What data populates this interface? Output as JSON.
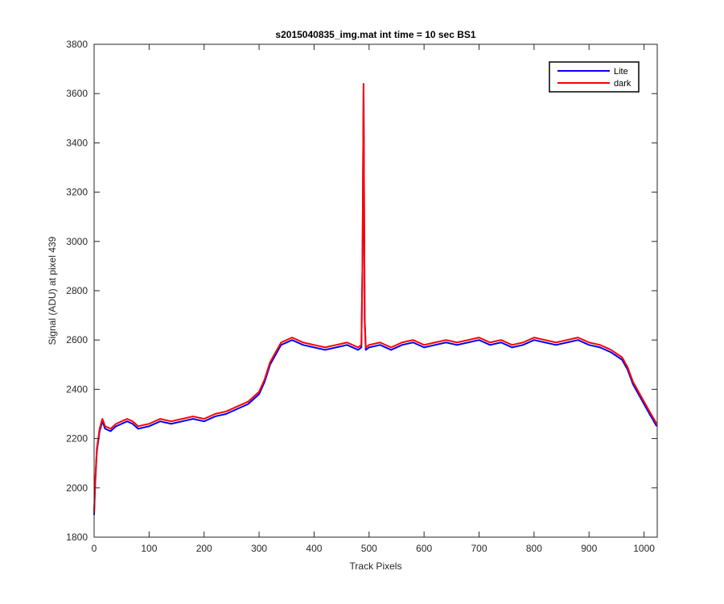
{
  "chart_data": {
    "type": "line",
    "title": "s2015040835_img.mat int time = 10 sec   BS1",
    "xlabel": "Track Pixels",
    "ylabel": "Signal (ADU) at pixel 439",
    "xlim": [
      0,
      1024
    ],
    "ylim": [
      1800,
      3800
    ],
    "xticks": [
      0,
      100,
      200,
      300,
      400,
      500,
      600,
      700,
      800,
      900,
      1000
    ],
    "yticks": [
      1800,
      2000,
      2200,
      2400,
      2600,
      2800,
      3000,
      3200,
      3400,
      3600,
      3800
    ],
    "grid": false,
    "legend_position": "top-right",
    "series": [
      {
        "name": "Lite",
        "color": "#0000ff",
        "x": [
          0,
          2,
          5,
          10,
          15,
          20,
          30,
          40,
          50,
          60,
          70,
          80,
          100,
          120,
          140,
          160,
          180,
          200,
          220,
          240,
          260,
          280,
          300,
          310,
          320,
          340,
          360,
          380,
          400,
          420,
          440,
          460,
          480,
          486,
          488,
          490,
          492,
          494,
          500,
          520,
          540,
          560,
          580,
          600,
          620,
          640,
          660,
          680,
          700,
          720,
          740,
          760,
          780,
          800,
          820,
          840,
          860,
          880,
          900,
          920,
          940,
          960,
          970,
          980,
          990,
          1000,
          1010,
          1023
        ],
        "values": [
          1890,
          2020,
          2150,
          2230,
          2270,
          2240,
          2230,
          2250,
          2260,
          2270,
          2260,
          2240,
          2250,
          2270,
          2260,
          2270,
          2280,
          2270,
          2290,
          2300,
          2320,
          2340,
          2380,
          2430,
          2500,
          2580,
          2600,
          2580,
          2570,
          2560,
          2570,
          2580,
          2560,
          2570,
          2900,
          3630,
          2680,
          2560,
          2570,
          2580,
          2560,
          2580,
          2590,
          2570,
          2580,
          2590,
          2580,
          2590,
          2600,
          2580,
          2590,
          2570,
          2580,
          2600,
          2590,
          2580,
          2590,
          2600,
          2580,
          2570,
          2550,
          2520,
          2480,
          2420,
          2380,
          2340,
          2300,
          2250
        ]
      },
      {
        "name": "dark",
        "color": "#ff0000",
        "x": [
          0,
          2,
          5,
          10,
          15,
          20,
          30,
          40,
          50,
          60,
          70,
          80,
          100,
          120,
          140,
          160,
          180,
          200,
          220,
          240,
          260,
          280,
          300,
          310,
          320,
          340,
          360,
          380,
          400,
          420,
          440,
          460,
          480,
          486,
          488,
          490,
          492,
          494,
          500,
          520,
          540,
          560,
          580,
          600,
          620,
          640,
          660,
          680,
          700,
          720,
          740,
          760,
          780,
          800,
          820,
          840,
          860,
          880,
          900,
          920,
          940,
          960,
          970,
          980,
          990,
          1000,
          1010,
          1023
        ],
        "values": [
          1900,
          2030,
          2160,
          2240,
          2280,
          2250,
          2240,
          2260,
          2270,
          2280,
          2270,
          2250,
          2260,
          2280,
          2270,
          2280,
          2290,
          2280,
          2300,
          2310,
          2330,
          2350,
          2390,
          2440,
          2510,
          2590,
          2610,
          2590,
          2580,
          2570,
          2580,
          2590,
          2570,
          2580,
          2910,
          3640,
          2690,
          2570,
          2580,
          2590,
          2570,
          2590,
          2600,
          2580,
          2590,
          2600,
          2590,
          2600,
          2610,
          2590,
          2600,
          2580,
          2590,
          2610,
          2600,
          2590,
          2600,
          2610,
          2590,
          2580,
          2560,
          2530,
          2490,
          2430,
          2390,
          2350,
          2310,
          2260
        ]
      }
    ]
  }
}
